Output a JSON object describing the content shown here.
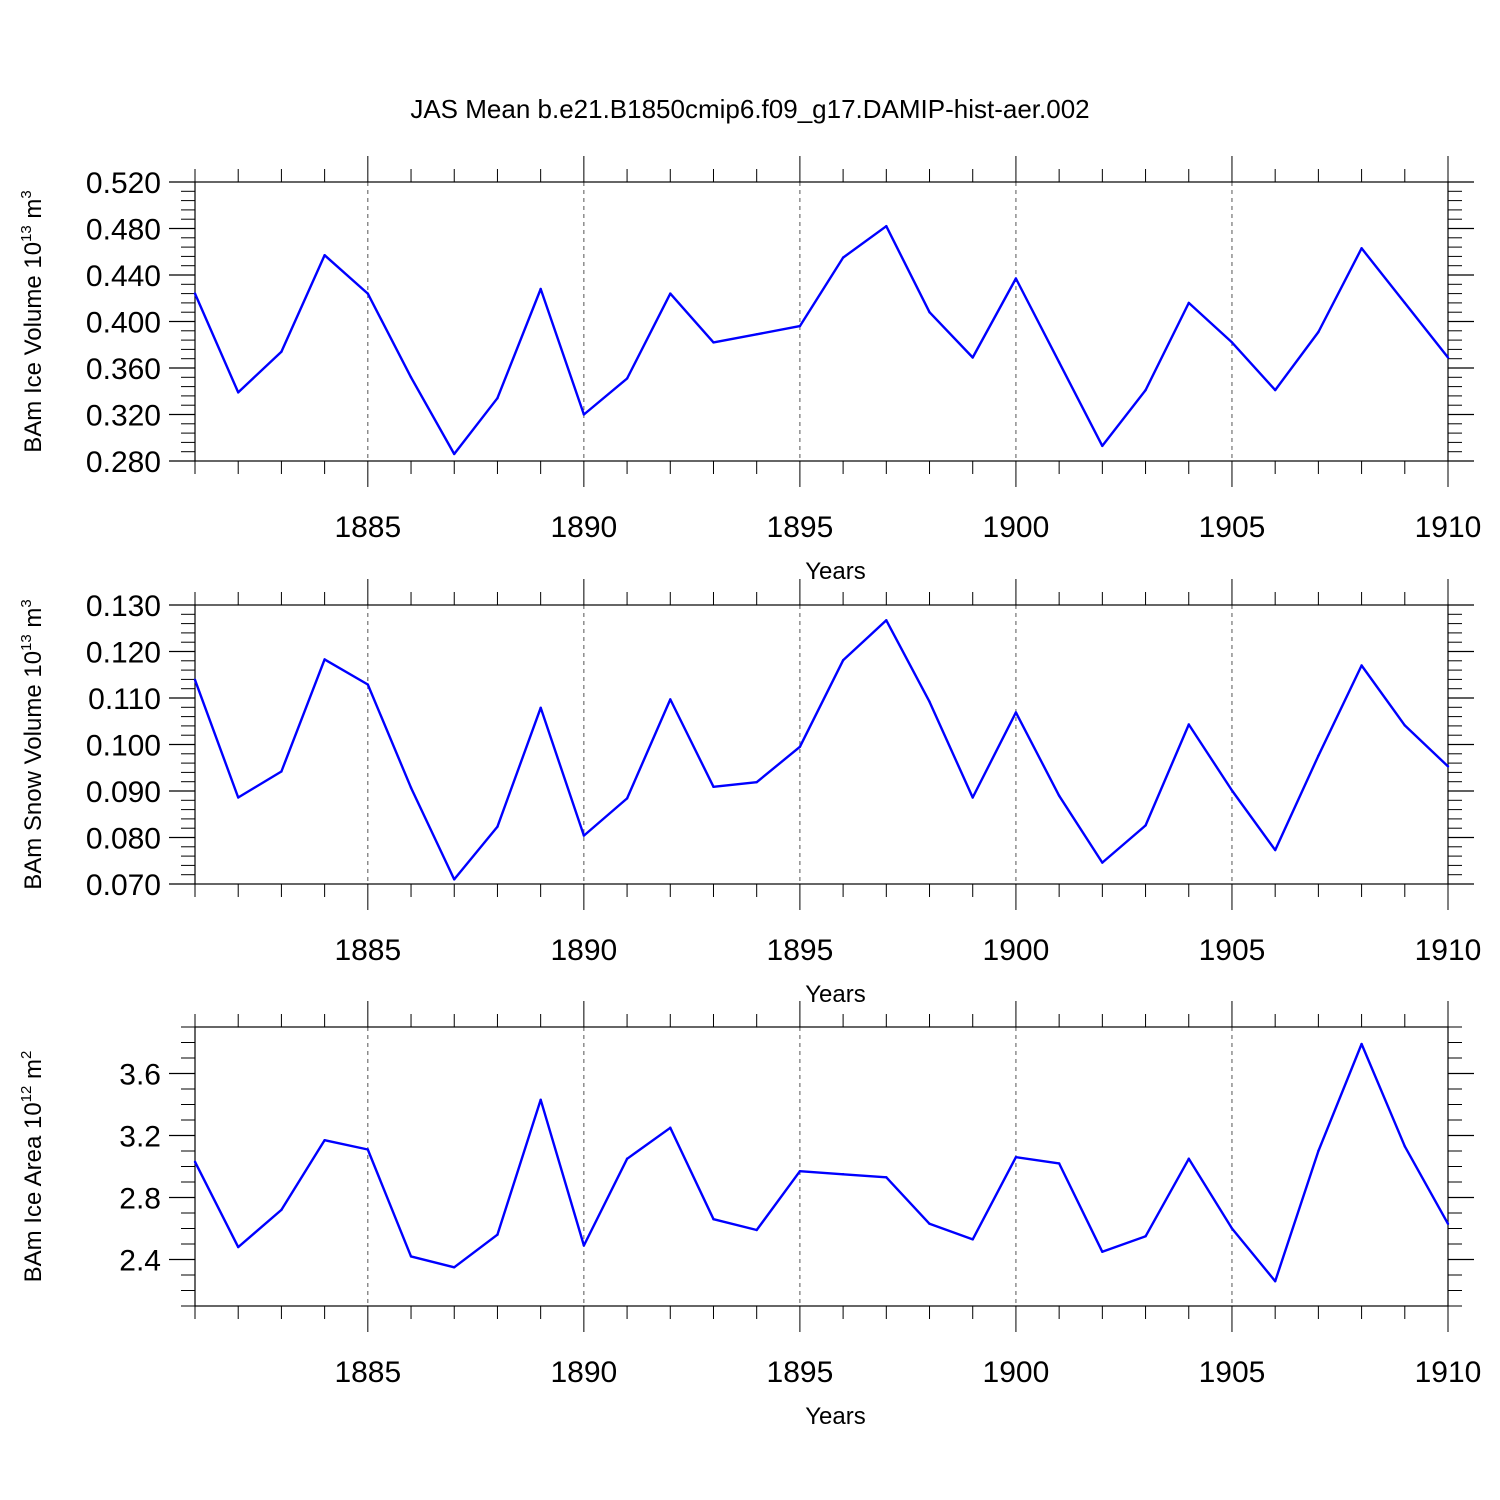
{
  "title": "JAS Mean b.e21.B1850cmip6.f09_g17.DAMIP-hist-aer.002",
  "colors": {
    "line": "#0000ff",
    "axis": "#000000",
    "grid": "#555555"
  },
  "chart_data": [
    {
      "type": "line",
      "ylabel": {
        "prefix": "BAm Ice Volume 10",
        "exp": "13",
        "unit": " m",
        "unit_exp": "3"
      },
      "xlabel": "Years",
      "xlim": [
        1881,
        1910
      ],
      "ylim": [
        0.28,
        0.52
      ],
      "yticks": [
        0.28,
        0.32,
        0.36,
        0.4,
        0.44,
        0.48,
        0.52
      ],
      "ytick_labels": [
        "0.280",
        "0.320",
        "0.360",
        "0.400",
        "0.440",
        "0.480",
        "0.520"
      ],
      "yminor_step": 0.008,
      "xticks": [
        1885,
        1890,
        1895,
        1900,
        1905,
        1910
      ],
      "xtick_labels": [
        "1885",
        "1890",
        "1895",
        "1900",
        "1905",
        "1910"
      ],
      "x": [
        1881,
        1882,
        1883,
        1884,
        1885,
        1886,
        1887,
        1888,
        1889,
        1890,
        1891,
        1892,
        1893,
        1894,
        1895,
        1896,
        1897,
        1898,
        1899,
        1900,
        1901,
        1902,
        1903,
        1904,
        1905,
        1906,
        1907,
        1908,
        1909,
        1910
      ],
      "values": [
        0.424,
        0.339,
        0.374,
        0.457,
        0.424,
        0.352,
        0.286,
        0.334,
        0.428,
        0.32,
        0.351,
        0.424,
        0.382,
        0.389,
        0.396,
        0.455,
        0.482,
        0.408,
        0.369,
        0.437,
        0.365,
        0.293,
        0.341,
        0.416,
        0.382,
        0.341,
        0.391,
        0.463,
        0.416,
        0.369
      ]
    },
    {
      "type": "line",
      "ylabel": {
        "prefix": "BAm Snow Volume 10",
        "exp": "13",
        "unit": " m",
        "unit_exp": "3"
      },
      "xlabel": "Years",
      "xlim": [
        1881,
        1910
      ],
      "ylim": [
        0.07,
        0.13
      ],
      "yticks": [
        0.07,
        0.08,
        0.09,
        0.1,
        0.11,
        0.12,
        0.13
      ],
      "ytick_labels": [
        "0.070",
        "0.080",
        "0.090",
        "0.100",
        "0.110",
        "0.120",
        "0.130"
      ],
      "yminor_step": 0.002,
      "xticks": [
        1885,
        1890,
        1895,
        1900,
        1905,
        1910
      ],
      "xtick_labels": [
        "1885",
        "1890",
        "1895",
        "1900",
        "1905",
        "1910"
      ],
      "x": [
        1881,
        1882,
        1883,
        1884,
        1885,
        1886,
        1887,
        1888,
        1889,
        1890,
        1891,
        1892,
        1893,
        1894,
        1895,
        1896,
        1897,
        1898,
        1899,
        1900,
        1901,
        1902,
        1903,
        1904,
        1905,
        1906,
        1907,
        1908,
        1909,
        1910
      ],
      "values": [
        0.1139,
        0.0886,
        0.0942,
        0.1183,
        0.1129,
        0.0907,
        0.071,
        0.0823,
        0.1079,
        0.0804,
        0.0884,
        0.1097,
        0.0909,
        0.0919,
        0.0995,
        0.1181,
        0.1267,
        0.1092,
        0.0886,
        0.1069,
        0.089,
        0.0746,
        0.0826,
        0.1043,
        0.0901,
        0.0773,
        0.0976,
        0.117,
        0.1041,
        0.0953
      ]
    },
    {
      "type": "line",
      "ylabel": {
        "prefix": "BAm Ice Area 10",
        "exp": "12",
        "unit": " m",
        "unit_exp": "2"
      },
      "xlabel": "Years",
      "xlim": [
        1881,
        1910
      ],
      "ylim": [
        2.1,
        3.9
      ],
      "yticks": [
        2.4,
        2.8,
        3.2,
        3.6
      ],
      "ytick_labels": [
        "2.4",
        "2.8",
        "3.2",
        "3.6"
      ],
      "yminor_step": 0.1,
      "xticks": [
        1885,
        1890,
        1895,
        1900,
        1905,
        1910
      ],
      "xtick_labels": [
        "1885",
        "1890",
        "1895",
        "1900",
        "1905",
        "1910"
      ],
      "x": [
        1881,
        1882,
        1883,
        1884,
        1885,
        1886,
        1887,
        1888,
        1889,
        1890,
        1891,
        1892,
        1893,
        1894,
        1895,
        1896,
        1897,
        1898,
        1899,
        1900,
        1901,
        1902,
        1903,
        1904,
        1905,
        1906,
        1907,
        1908,
        1909,
        1910
      ],
      "values": [
        3.03,
        2.48,
        2.72,
        3.17,
        3.11,
        2.42,
        2.35,
        2.56,
        3.43,
        2.49,
        3.05,
        3.25,
        2.66,
        2.59,
        2.97,
        2.95,
        2.93,
        2.63,
        2.53,
        3.06,
        3.02,
        2.45,
        2.55,
        3.05,
        2.6,
        2.26,
        3.1,
        3.79,
        3.13,
        2.63
      ]
    }
  ]
}
